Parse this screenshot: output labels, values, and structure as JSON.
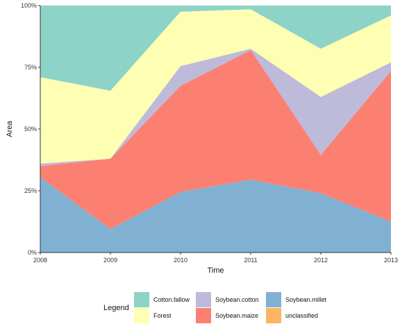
{
  "chart_data": {
    "type": "area",
    "stacked": true,
    "percent": true,
    "x": [
      2008,
      2009,
      2010,
      2011,
      2012,
      2013
    ],
    "x_tick_labels": [
      "2008",
      "2009",
      "2010",
      "2011",
      "2012",
      "2013"
    ],
    "y_tick_labels": [
      "0%",
      "25%",
      "50%",
      "75%",
      "100%"
    ],
    "ylim": [
      0,
      100
    ],
    "xlabel": "Time",
    "ylabel": "Area",
    "grid": false,
    "legend_title": "Legend",
    "legend_position": "bottom",
    "series": [
      {
        "name": "Soybean.millet",
        "color": "#80B1D3",
        "values": [
          30.5,
          9.5,
          24.5,
          29.5,
          24,
          12.5
        ]
      },
      {
        "name": "Soybean.maize",
        "color": "#FB8072",
        "values": [
          4.5,
          28.5,
          43,
          52.5,
          15.5,
          61
        ]
      },
      {
        "name": "Soybean.cotton",
        "color": "#BEBADA",
        "values": [
          1,
          0,
          8,
          0.5,
          23.5,
          3.5
        ]
      },
      {
        "name": "Forest",
        "color": "#FFFFB3",
        "values": [
          35,
          27.5,
          22,
          16,
          19.5,
          19
        ]
      },
      {
        "name": "Cotton.fallow",
        "color": "#8DD3C7",
        "values": [
          29,
          34.5,
          2.5,
          1.5,
          17.5,
          4
        ]
      },
      {
        "name": "unclassified",
        "color": "#FDB462",
        "values": [
          0,
          0,
          0,
          0,
          0,
          0
        ]
      }
    ],
    "legend_order": [
      "Cotton.fallow",
      "Forest",
      "Soybean.cotton",
      "Soybean.maize",
      "Soybean.millet",
      "unclassified"
    ]
  }
}
